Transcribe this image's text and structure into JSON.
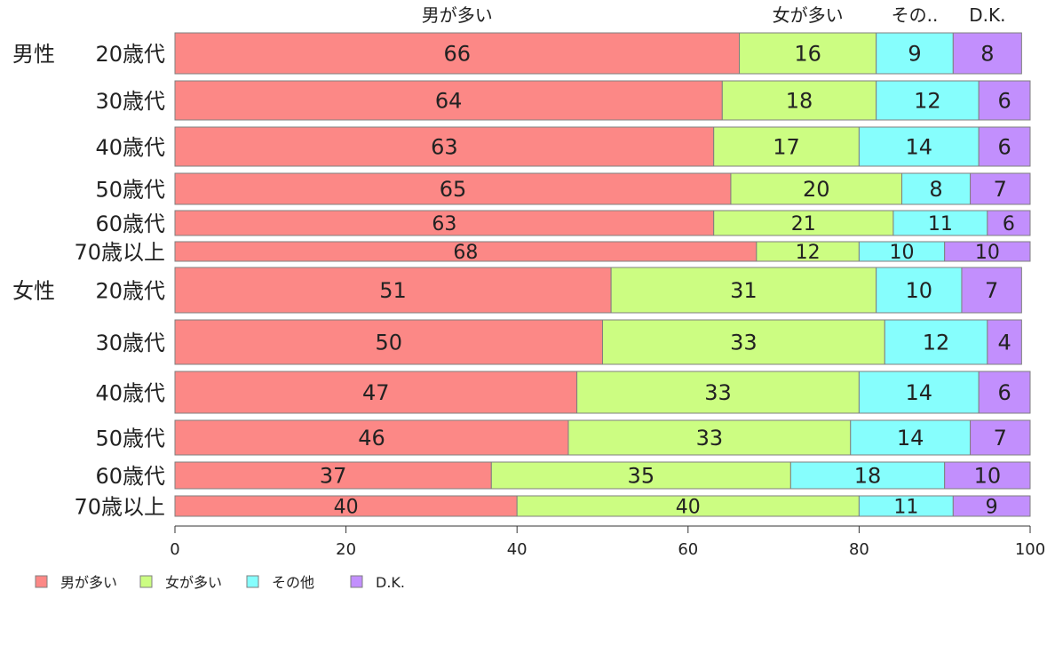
{
  "chart_data": {
    "type": "bar",
    "orientation": "horizontal",
    "stacked": true,
    "top_labels": [
      "男が多い",
      "女が多い",
      "その..",
      "D.K."
    ],
    "groups": [
      {
        "label": "男性",
        "rows": [
          {
            "label": "20歳代",
            "values": [
              66,
              16,
              9,
              8
            ]
          },
          {
            "label": "30歳代",
            "values": [
              64,
              18,
              12,
              6
            ]
          },
          {
            "label": "40歳代",
            "values": [
              63,
              17,
              14,
              6
            ]
          },
          {
            "label": "50歳代",
            "values": [
              65,
              20,
              8,
              7
            ]
          },
          {
            "label": "60歳代",
            "values": [
              63,
              21,
              11,
              6
            ]
          },
          {
            "label": "70歳以上",
            "values": [
              68,
              12,
              10,
              10
            ]
          }
        ]
      },
      {
        "label": "女性",
        "rows": [
          {
            "label": "20歳代",
            "values": [
              51,
              31,
              10,
              7
            ]
          },
          {
            "label": "30歳代",
            "values": [
              50,
              33,
              12,
              4
            ]
          },
          {
            "label": "40歳代",
            "values": [
              47,
              33,
              14,
              6
            ]
          },
          {
            "label": "50歳代",
            "values": [
              46,
              33,
              14,
              7
            ]
          },
          {
            "label": "60歳代",
            "values": [
              37,
              35,
              18,
              10
            ]
          },
          {
            "label": "70歳以上",
            "values": [
              40,
              40,
              11,
              9
            ]
          }
        ]
      }
    ],
    "series": [
      {
        "name": "男が多い",
        "color": "#fc8886"
      },
      {
        "name": "女が多い",
        "color": "#ccfd82"
      },
      {
        "name": "その他",
        "color": "#86fefd"
      },
      {
        "name": "D.K.",
        "color": "#c28ffd"
      }
    ],
    "xlim": [
      0,
      100
    ],
    "xticks": [
      0,
      20,
      40,
      60,
      80,
      100
    ],
    "legend_position": "bottom-left",
    "grid": false
  }
}
